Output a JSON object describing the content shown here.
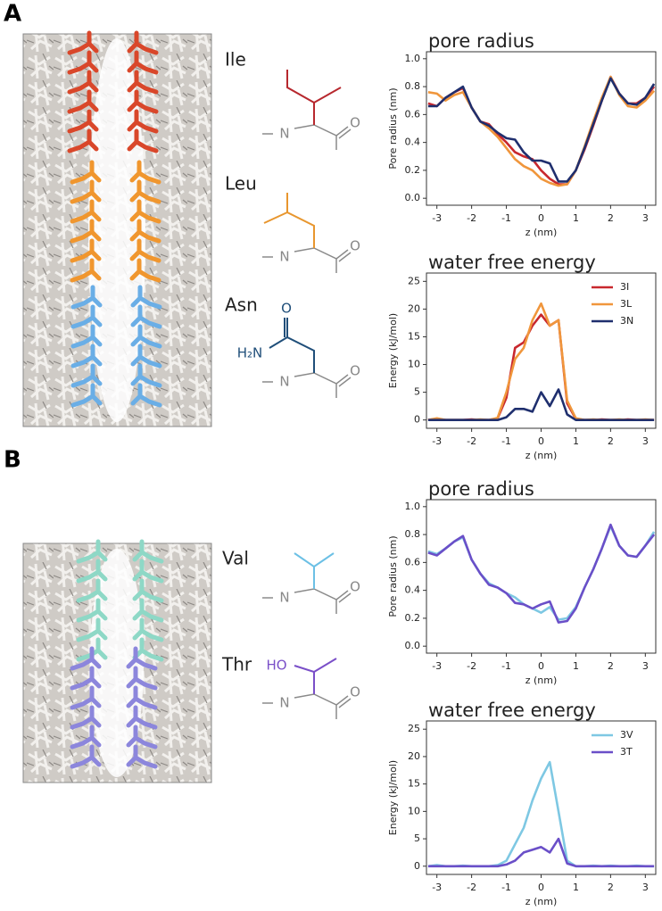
{
  "panel_labels": [
    "A",
    "B"
  ],
  "residues": [
    "Ile",
    "Leu",
    "Asn",
    "Val",
    "Thr"
  ],
  "structures": [
    {
      "atoms": [
        "N",
        "O"
      ]
    },
    {
      "atoms": [
        "N",
        "O"
      ]
    },
    {
      "atoms": [
        "O",
        "H₂N",
        "N",
        "O"
      ]
    },
    {
      "atoms": [
        "N",
        "O"
      ]
    },
    {
      "atoms": [
        "HO",
        "N",
        "O"
      ]
    }
  ],
  "chart_data": [
    {
      "type": "line",
      "title": "pore radius",
      "x_label": "z (nm)",
      "y_label": "Pore radius (nm)",
      "x": [
        -3.25,
        -3,
        -2.75,
        -2.5,
        -2.25,
        -2,
        -1.75,
        -1.5,
        -1.25,
        -1,
        -0.75,
        -0.5,
        -0.25,
        0,
        0.25,
        0.5,
        0.75,
        1,
        1.25,
        1.5,
        1.75,
        2,
        2.25,
        2.5,
        2.75,
        3,
        3.25
      ],
      "xlim": [
        -3.3,
        3.3
      ],
      "xticks": [
        -3,
        -2,
        -1,
        0,
        1,
        2,
        3
      ],
      "ylim": [
        -0.05,
        1.05
      ],
      "yticks": [
        {
          "value": 0,
          "label": "0.0"
        },
        0.2,
        0.4,
        0.6,
        0.8,
        {
          "value": 1,
          "label": "1.0"
        }
      ],
      "series": [
        {
          "color": "#c8282e",
          "values": [
            0.68,
            0.66,
            0.72,
            0.76,
            0.79,
            0.65,
            0.55,
            0.53,
            0.46,
            0.4,
            0.33,
            0.3,
            0.28,
            0.2,
            0.14,
            0.1,
            0.1,
            0.2,
            0.35,
            0.52,
            0.7,
            0.87,
            0.75,
            0.68,
            0.68,
            0.72,
            0.8
          ]
        },
        {
          "color": "#f0963c",
          "values": [
            0.76,
            0.75,
            0.7,
            0.74,
            0.76,
            0.65,
            0.55,
            0.5,
            0.44,
            0.36,
            0.28,
            0.23,
            0.2,
            0.14,
            0.11,
            0.09,
            0.1,
            0.2,
            0.37,
            0.55,
            0.72,
            0.87,
            0.74,
            0.66,
            0.65,
            0.7,
            0.77
          ]
        },
        {
          "color": "#1f2f6e",
          "values": [
            0.66,
            0.66,
            0.72,
            0.76,
            0.8,
            0.65,
            0.55,
            0.52,
            0.47,
            0.43,
            0.42,
            0.33,
            0.27,
            0.27,
            0.25,
            0.12,
            0.12,
            0.2,
            0.36,
            0.53,
            0.7,
            0.86,
            0.75,
            0.68,
            0.67,
            0.72,
            0.82
          ]
        }
      ]
    },
    {
      "type": "line",
      "title": "water free energy",
      "x_label": "z (nm)",
      "y_label": "Energy (kJ/mol)",
      "x": [
        -3.25,
        -3,
        -2.75,
        -2.5,
        -2.25,
        -2,
        -1.75,
        -1.5,
        -1.25,
        -1,
        -0.75,
        -0.5,
        -0.25,
        0,
        0.25,
        0.5,
        0.75,
        1,
        1.25,
        1.5,
        1.75,
        2,
        2.25,
        2.5,
        2.75,
        3,
        3.25
      ],
      "xlim": [
        -3.3,
        3.3
      ],
      "xticks": [
        -3,
        -2,
        -1,
        0,
        1,
        2,
        3
      ],
      "ylim": [
        -1.5,
        26.5
      ],
      "yticks": [
        0,
        5,
        10,
        15,
        20,
        25
      ],
      "legend": "upper right",
      "series": [
        {
          "name": "3I",
          "color": "#c8282e",
          "values": [
            0,
            0.2,
            0,
            0,
            0,
            0.1,
            0,
            0,
            0.3,
            4,
            13,
            14,
            17,
            19,
            17,
            18,
            3,
            0.2,
            0,
            0,
            0.1,
            0,
            0,
            0.1,
            0,
            0,
            0
          ]
        },
        {
          "name": "3L",
          "color": "#f0963c",
          "values": [
            0,
            0.3,
            0,
            0,
            0,
            0,
            0.1,
            0,
            0.4,
            5,
            11,
            13,
            18,
            21,
            17,
            18,
            3.5,
            0.3,
            0,
            0.1,
            0,
            0,
            0.1,
            0,
            0,
            0.1,
            0
          ]
        },
        {
          "name": "3N",
          "color": "#1f2f6e",
          "values": [
            0,
            0,
            0,
            0,
            0,
            0,
            0,
            0,
            0,
            0.5,
            2,
            2,
            1.5,
            5,
            2.5,
            5.5,
            1,
            0,
            0,
            0,
            0,
            0,
            0,
            0,
            0,
            0,
            0
          ]
        }
      ]
    },
    {
      "type": "line",
      "title": "pore radius",
      "x_label": "z (nm)",
      "y_label": "Pore radius (nm)",
      "x": [
        -3.25,
        -3,
        -2.75,
        -2.5,
        -2.25,
        -2,
        -1.75,
        -1.5,
        -1.25,
        -1,
        -0.75,
        -0.5,
        -0.25,
        0,
        0.25,
        0.5,
        0.75,
        1,
        1.25,
        1.5,
        1.75,
        2,
        2.25,
        2.5,
        2.75,
        3,
        3.25
      ],
      "xlim": [
        -3.3,
        3.3
      ],
      "xticks": [
        -3,
        -2,
        -1,
        0,
        1,
        2,
        3
      ],
      "ylim": [
        -0.05,
        1.05
      ],
      "yticks": [
        {
          "value": 0,
          "label": "0.0"
        },
        0.2,
        0.4,
        0.6,
        0.8,
        {
          "value": 1,
          "label": "1.0"
        }
      ],
      "series": [
        {
          "color": "#7ec8e3",
          "values": [
            0.68,
            0.66,
            0.7,
            0.75,
            0.78,
            0.62,
            0.52,
            0.45,
            0.42,
            0.38,
            0.35,
            0.3,
            0.27,
            0.24,
            0.28,
            0.19,
            0.2,
            0.28,
            0.42,
            0.55,
            0.7,
            0.86,
            0.72,
            0.65,
            0.64,
            0.72,
            0.82
          ]
        },
        {
          "color": "#6a4fc8",
          "values": [
            0.67,
            0.65,
            0.7,
            0.75,
            0.79,
            0.62,
            0.52,
            0.44,
            0.42,
            0.38,
            0.31,
            0.3,
            0.27,
            0.3,
            0.32,
            0.17,
            0.18,
            0.27,
            0.42,
            0.55,
            0.7,
            0.87,
            0.72,
            0.65,
            0.64,
            0.72,
            0.8
          ]
        }
      ]
    },
    {
      "type": "line",
      "title": "water free energy",
      "x_label": "z (nm)",
      "y_label": "Energy (kJ/mol)",
      "x": [
        -3.25,
        -3,
        -2.75,
        -2.5,
        -2.25,
        -2,
        -1.75,
        -1.5,
        -1.25,
        -1,
        -0.75,
        -0.5,
        -0.25,
        0,
        0.25,
        0.5,
        0.75,
        1,
        1.25,
        1.5,
        1.75,
        2,
        2.25,
        2.5,
        2.75,
        3,
        3.25
      ],
      "xlim": [
        -3.3,
        3.3
      ],
      "xticks": [
        -3,
        -2,
        -1,
        0,
        1,
        2,
        3
      ],
      "ylim": [
        -1.5,
        26.5
      ],
      "yticks": [
        0,
        5,
        10,
        15,
        20,
        25
      ],
      "legend": "upper right",
      "series": [
        {
          "name": "3V",
          "color": "#7ec8e3",
          "values": [
            0,
            0.2,
            0,
            0,
            0.1,
            0,
            0,
            0,
            0.2,
            1,
            4,
            7,
            12,
            16,
            19,
            10,
            1,
            0,
            0,
            0.1,
            0,
            0.1,
            0,
            0,
            0.1,
            0,
            0
          ]
        },
        {
          "name": "3T",
          "color": "#6a4fc8",
          "values": [
            0,
            0,
            0,
            0,
            0,
            0,
            0,
            0,
            0,
            0.3,
            1,
            2.5,
            3,
            3.5,
            2.5,
            5,
            0.5,
            0,
            0,
            0,
            0,
            0,
            0,
            0,
            0,
            0,
            0
          ]
        }
      ]
    }
  ]
}
